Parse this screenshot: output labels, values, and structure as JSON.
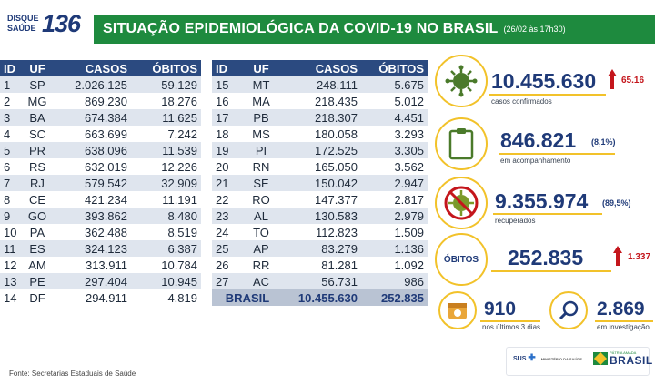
{
  "header": {
    "logo_line1": "DISQUE",
    "logo_line2": "SAÚDE",
    "logo_number": "136",
    "title": "SITUAÇÃO EPIDEMIOLÓGICA DA COVID-19 NO BRASIL",
    "date": "(26/02 às 17h30)"
  },
  "columns": [
    "ID",
    "UF",
    "CASOS",
    "ÓBITOS"
  ],
  "table_left": [
    {
      "id": "1",
      "uf": "SP",
      "casos": "2.026.125",
      "obitos": "59.129"
    },
    {
      "id": "2",
      "uf": "MG",
      "casos": "869.230",
      "obitos": "18.276"
    },
    {
      "id": "3",
      "uf": "BA",
      "casos": "674.384",
      "obitos": "11.625"
    },
    {
      "id": "4",
      "uf": "SC",
      "casos": "663.699",
      "obitos": "7.242"
    },
    {
      "id": "5",
      "uf": "PR",
      "casos": "638.096",
      "obitos": "11.539"
    },
    {
      "id": "6",
      "uf": "RS",
      "casos": "632.019",
      "obitos": "12.226"
    },
    {
      "id": "7",
      "uf": "RJ",
      "casos": "579.542",
      "obitos": "32.909"
    },
    {
      "id": "8",
      "uf": "CE",
      "casos": "421.234",
      "obitos": "11.191"
    },
    {
      "id": "9",
      "uf": "GO",
      "casos": "393.862",
      "obitos": "8.480"
    },
    {
      "id": "10",
      "uf": "PA",
      "casos": "362.488",
      "obitos": "8.519"
    },
    {
      "id": "11",
      "uf": "ES",
      "casos": "324.123",
      "obitos": "6.387"
    },
    {
      "id": "12",
      "uf": "AM",
      "casos": "313.911",
      "obitos": "10.784"
    },
    {
      "id": "13",
      "uf": "PE",
      "casos": "297.404",
      "obitos": "10.945"
    },
    {
      "id": "14",
      "uf": "DF",
      "casos": "294.911",
      "obitos": "4.819"
    }
  ],
  "table_right": [
    {
      "id": "15",
      "uf": "MT",
      "casos": "248.111",
      "obitos": "5.675"
    },
    {
      "id": "16",
      "uf": "MA",
      "casos": "218.435",
      "obitos": "5.012"
    },
    {
      "id": "17",
      "uf": "PB",
      "casos": "218.307",
      "obitos": "4.451"
    },
    {
      "id": "18",
      "uf": "MS",
      "casos": "180.058",
      "obitos": "3.293"
    },
    {
      "id": "19",
      "uf": "PI",
      "casos": "172.525",
      "obitos": "3.305"
    },
    {
      "id": "20",
      "uf": "RN",
      "casos": "165.050",
      "obitos": "3.562"
    },
    {
      "id": "21",
      "uf": "SE",
      "casos": "150.042",
      "obitos": "2.947"
    },
    {
      "id": "22",
      "uf": "RO",
      "casos": "147.377",
      "obitos": "2.817"
    },
    {
      "id": "23",
      "uf": "AL",
      "casos": "130.583",
      "obitos": "2.979"
    },
    {
      "id": "24",
      "uf": "TO",
      "casos": "112.823",
      "obitos": "1.509"
    },
    {
      "id": "25",
      "uf": "AP",
      "casos": "83.279",
      "obitos": "1.136"
    },
    {
      "id": "26",
      "uf": "RR",
      "casos": "81.281",
      "obitos": "1.092"
    },
    {
      "id": "27",
      "uf": "AC",
      "casos": "56.731",
      "obitos": "986"
    }
  ],
  "total": {
    "label": "BRASIL",
    "casos": "10.455.630",
    "obitos": "252.835"
  },
  "stats": {
    "confirmados": {
      "value": "10.455.630",
      "increase": "65.16",
      "label": "casos confirmados",
      "icon": "virus-icon"
    },
    "acompanhamento": {
      "value": "846.821",
      "pct": "(8,1%)",
      "label": "em acompanhamento",
      "icon": "clipboard-icon"
    },
    "recuperados": {
      "value": "9.355.974",
      "pct": "(89,5%)",
      "label": "recuperados",
      "icon": "no-virus-icon"
    },
    "obitos": {
      "badge": "ÓBITOS",
      "value": "252.835",
      "increase": "1.337"
    },
    "ultimos": {
      "value": "910",
      "label": "nos últimos 3 dias",
      "icon": "calendar-icon"
    },
    "investigacao": {
      "value": "2.869",
      "label": "em investigação",
      "icon": "magnifier-icon"
    }
  },
  "colors": {
    "green": "#1e8a3e",
    "navy": "#2b4a80",
    "yellow": "#f2c22a",
    "red": "#c4161c"
  },
  "footer": {
    "source": "Fonte: Secretarias Estaduais de Saúde",
    "sus": "SUS",
    "ministry": "MINISTÉRIO DA SAÚDE",
    "brasil_top": "PÁTRIA AMADA",
    "brasil": "BRASIL"
  }
}
